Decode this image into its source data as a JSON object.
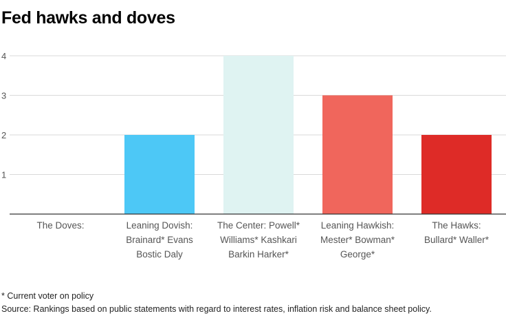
{
  "chart_data": {
    "type": "bar",
    "title": "Fed hawks and doves",
    "categories": [
      [
        "The Doves:"
      ],
      [
        "Leaning Dovish:",
        "Brainard* Evans",
        "Bostic Daly"
      ],
      [
        "The Center: Powell*",
        "Williams* Kashkari",
        "Barkin Harker*"
      ],
      [
        "Leaning Hawkish:",
        "Mester* Bowman*",
        "George*"
      ],
      [
        "The Hawks:",
        "Bullard* Waller*"
      ]
    ],
    "values": [
      0,
      2,
      4,
      3,
      2
    ],
    "colors": [
      "#4dc8f6",
      "#4dc8f6",
      "#dff3f2",
      "#f0665c",
      "#de2b27"
    ],
    "yticks": [
      1,
      2,
      3,
      4
    ],
    "ylim": [
      0,
      4
    ],
    "grid": true,
    "xlabel": "",
    "ylabel": ""
  },
  "footnotes": {
    "voter": "* Current voter on policy",
    "source": "Source: Rankings based on public statements with regard to interest rates, inflation risk and balance sheet policy."
  }
}
